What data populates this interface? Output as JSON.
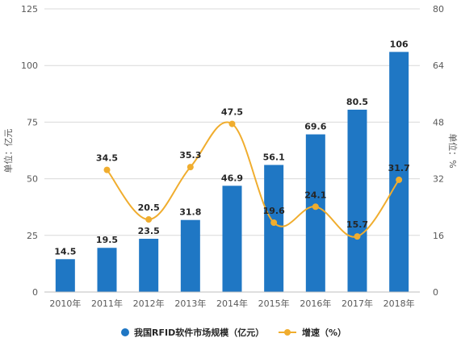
{
  "chart_data": {
    "type": "bar",
    "categories": [
      "2010年",
      "2011年",
      "2012年",
      "2013年",
      "2014年",
      "2015年",
      "2016年",
      "2017年",
      "2018年"
    ],
    "series": [
      {
        "name": "我国RFID软件市场规模（亿元）",
        "type": "bar",
        "axis": "left",
        "color": "#1f77c4",
        "values": [
          14.5,
          19.5,
          23.5,
          31.8,
          46.9,
          56.1,
          69.6,
          80.5,
          106
        ],
        "labels": [
          "14.5",
          "19.5",
          "23.5",
          "31.8",
          "46.9",
          "56.1",
          "69.6",
          "80.5",
          "106"
        ]
      },
      {
        "name": "增速（%）",
        "type": "line",
        "axis": "right",
        "color": "#f0ad2e",
        "values": [
          null,
          34.5,
          20.5,
          35.3,
          47.5,
          19.6,
          24.1,
          15.7,
          31.7
        ],
        "labels": [
          "",
          "34.5",
          "20.5",
          "35.3",
          "47.5",
          "19.6",
          "24.1",
          "15.7",
          "31.7"
        ]
      }
    ],
    "ylabel_left": "单位：亿元",
    "ylabel_right": "单位：%",
    "ylim_left": [
      0,
      125
    ],
    "ylim_right": [
      0,
      80
    ],
    "yticks_left": [
      "0",
      "25",
      "50",
      "75",
      "100",
      "125"
    ],
    "yticks_right": [
      "0",
      "16",
      "32",
      "48",
      "64",
      "80"
    ],
    "grid": true,
    "legend_position": "bottom"
  }
}
